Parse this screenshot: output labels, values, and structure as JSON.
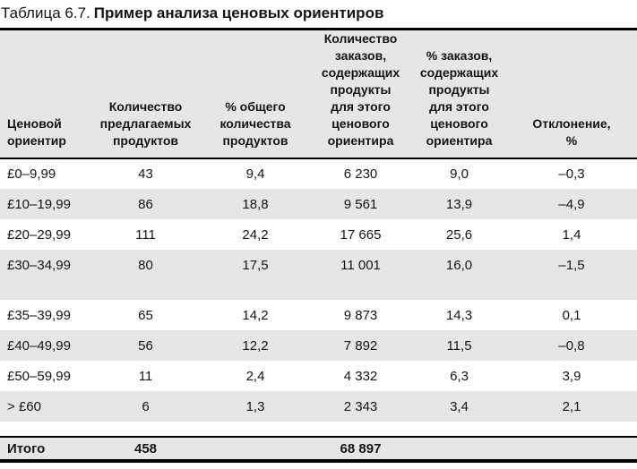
{
  "title": {
    "prefix": "Таблица 6.7.",
    "text": "Пример анализа ценовых ориентиров"
  },
  "table": {
    "columns": [
      {
        "label": "Ценовой\nориентир"
      },
      {
        "label": "Количество\nпредлагаемых\nпродуктов"
      },
      {
        "label": "% общего\nколичества\nпродуктов"
      },
      {
        "label": "Количество\nзаказов,\nсодержащих\nпродукты\nдля этого\nценового\nориентира"
      },
      {
        "label": "% заказов,\nсодержащих\nпродукты\nдля этого\nценового\nориентира"
      },
      {
        "label": "Отклонение,\n%"
      }
    ],
    "rows": [
      {
        "cells": [
          "£0–9,99",
          "43",
          "9,4",
          "6 230",
          "9,0",
          "–0,3"
        ],
        "shaded": false
      },
      {
        "cells": [
          "£10–19,99",
          "86",
          "18,8",
          "9 561",
          "13,9",
          "–4,9"
        ],
        "shaded": true
      },
      {
        "cells": [
          "£20–29,99",
          "111",
          "24,2",
          "17 665",
          "25,6",
          "1,4"
        ],
        "shaded": false
      },
      {
        "cells": [
          "£30–34,99",
          "80",
          "17,5",
          "11 001",
          "16,0",
          "–1,5"
        ],
        "shaded": true,
        "spacer_after": true
      },
      {
        "cells": [
          "£35–39,99",
          "65",
          "14,2",
          "9 873",
          "14,3",
          "0,1"
        ],
        "shaded": false
      },
      {
        "cells": [
          "£40–49,99",
          "56",
          "12,2",
          "7 892",
          "11,5",
          "–0,8"
        ],
        "shaded": true
      },
      {
        "cells": [
          "£50–59,99",
          "11",
          "2,4",
          "4 332",
          "6,3",
          "3,9"
        ],
        "shaded": false
      },
      {
        "cells": [
          "> £60",
          "6",
          "1,3",
          "2 343",
          "3,4",
          "2,1"
        ],
        "shaded": true
      }
    ],
    "total_row": {
      "cells": [
        "Итого",
        "458",
        "",
        "68 897",
        "",
        ""
      ]
    }
  },
  "colors": {
    "shaded_row": "#e6e6e6",
    "text": "#141414",
    "rule": "#000000",
    "background": "#ffffff"
  }
}
